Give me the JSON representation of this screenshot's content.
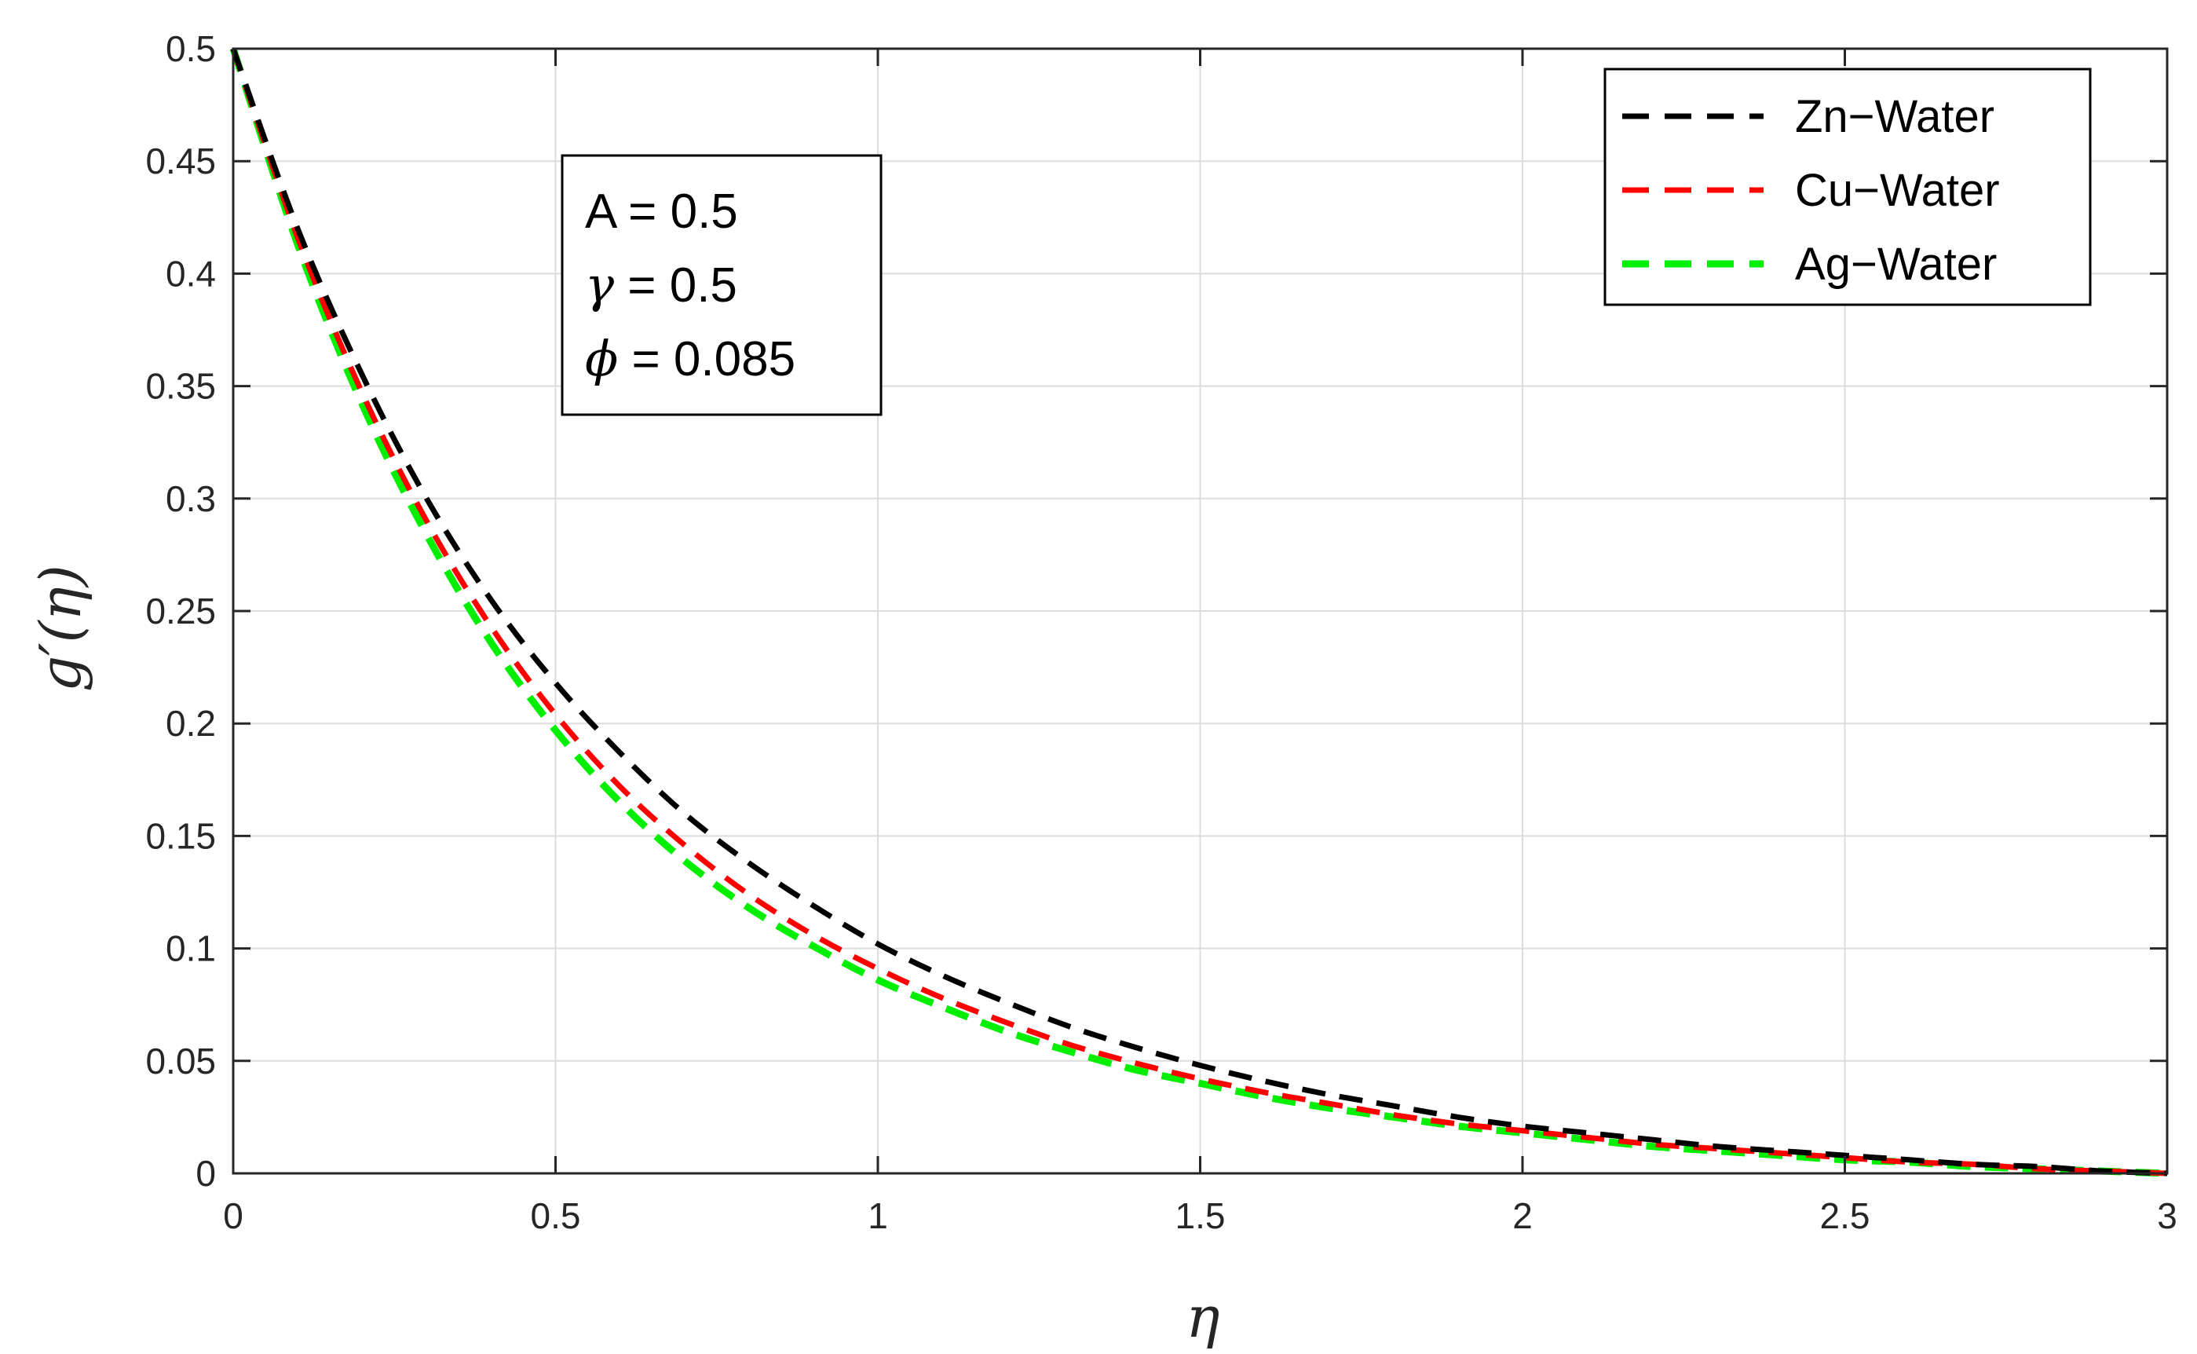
{
  "chart_data": {
    "type": "line",
    "title": "",
    "xlabel": "η",
    "ylabel": "g′(η)",
    "xlim": [
      0,
      3
    ],
    "ylim": [
      0,
      0.5
    ],
    "xticks": [
      0,
      0.5,
      1,
      1.5,
      2,
      2.5,
      3
    ],
    "yticks": [
      0,
      0.05,
      0.1,
      0.15,
      0.2,
      0.25,
      0.3,
      0.35,
      0.4,
      0.45,
      0.5
    ],
    "xtick_labels": [
      "0",
      "0.5",
      "1",
      "1.5",
      "2",
      "2.5",
      "3"
    ],
    "ytick_labels": [
      "0",
      "0.05",
      "0.1",
      "0.15",
      "0.2",
      "0.25",
      "0.3",
      "0.35",
      "0.4",
      "0.45",
      "0.5"
    ],
    "grid": true,
    "legend_position": "top-right",
    "x": [
      0,
      0.1,
      0.2,
      0.3,
      0.4,
      0.5,
      0.6,
      0.7,
      0.8,
      0.9,
      1.0,
      1.1,
      1.2,
      1.3,
      1.4,
      1.5,
      1.6,
      1.7,
      1.8,
      1.9,
      2.0,
      2.1,
      2.2,
      2.3,
      2.4,
      2.5,
      2.6,
      2.7,
      2.8,
      2.9,
      3.0
    ],
    "series": [
      {
        "name": "Zn−Water",
        "color": "#000000",
        "values": [
          0.5,
          0.42,
          0.355,
          0.3,
          0.255,
          0.218,
          0.187,
          0.16,
          0.138,
          0.119,
          0.102,
          0.088,
          0.076,
          0.065,
          0.056,
          0.048,
          0.041,
          0.035,
          0.03,
          0.025,
          0.021,
          0.018,
          0.015,
          0.012,
          0.01,
          0.008,
          0.006,
          0.004,
          0.003,
          0.001,
          0
        ]
      },
      {
        "name": "Cu−Water",
        "color": "#ff0000",
        "values": [
          0.5,
          0.416,
          0.347,
          0.29,
          0.243,
          0.204,
          0.172,
          0.146,
          0.124,
          0.106,
          0.091,
          0.078,
          0.067,
          0.057,
          0.049,
          0.042,
          0.036,
          0.031,
          0.026,
          0.022,
          0.019,
          0.016,
          0.013,
          0.011,
          0.009,
          0.007,
          0.005,
          0.004,
          0.002,
          0.001,
          0
        ]
      },
      {
        "name": "Ag−Water",
        "color": "#00ee00",
        "values": [
          0.5,
          0.413,
          0.342,
          0.284,
          0.236,
          0.197,
          0.165,
          0.139,
          0.118,
          0.101,
          0.086,
          0.074,
          0.063,
          0.054,
          0.046,
          0.04,
          0.034,
          0.029,
          0.025,
          0.021,
          0.018,
          0.015,
          0.012,
          0.01,
          0.008,
          0.006,
          0.005,
          0.003,
          0.002,
          0.001,
          0
        ]
      }
    ],
    "annotation": {
      "lines": [
        {
          "symbol": "A",
          "text": " = 0.5"
        },
        {
          "symbol": "γ",
          "text": " = 0.5"
        },
        {
          "symbol": "ϕ",
          "text": " = 0.085"
        }
      ]
    }
  }
}
